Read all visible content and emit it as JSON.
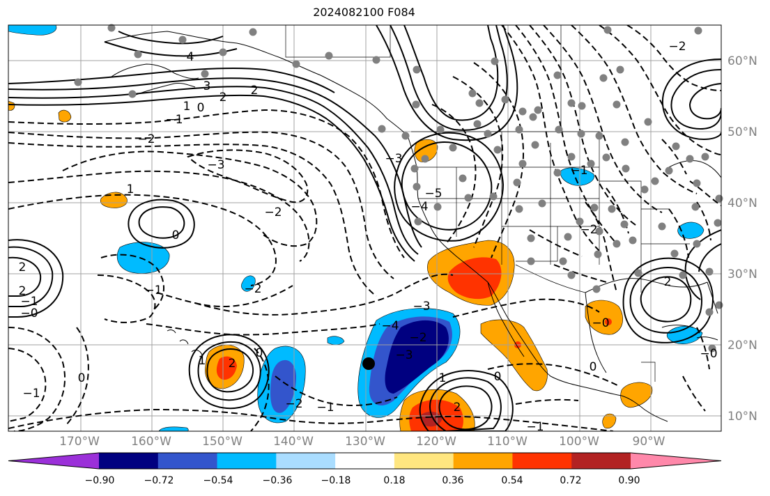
{
  "title": "2024082100 F084",
  "lon_labels": [
    "170°W",
    "160°W",
    "150°W",
    "140°W",
    "130°W",
    "120°W",
    "110°W",
    "100°W",
    "90°W"
  ],
  "lat_labels": [
    "60°N",
    "50°N",
    "40°N",
    "30°N",
    "20°N",
    "10°N"
  ],
  "colorbar": {
    "ticks": [
      "−0.90",
      "−0.72",
      "−0.54",
      "−0.36",
      "−0.18",
      "0.18",
      "0.36",
      "0.54",
      "0.72",
      "0.90"
    ],
    "colors": [
      "#9b30d9",
      "#000080",
      "#3355cc",
      "#00bbff",
      "#aaddff",
      "#ffffff",
      "#ffe680",
      "#ffa500",
      "#ff3300",
      "#b22222",
      "#ff88aa"
    ]
  },
  "contour_labels": [
    "4",
    "3",
    "2",
    "1",
    "0",
    "−1",
    "−2",
    "−3",
    "2",
    "1",
    "0",
    "−1",
    "−2",
    "−3",
    "−4",
    "−5",
    "−2",
    "2",
    "−0",
    "−1",
    "2",
    "2",
    "0",
    "1",
    "0",
    "−1",
    "−2",
    "−3",
    "−4",
    "1",
    "2",
    "−1",
    "−2",
    "−3",
    "−1",
    "0",
    "−0",
    "0",
    "−0",
    "−1",
    "2",
    "−2",
    "−2"
  ],
  "colors": {
    "land": "#000000",
    "grid": "#a0a0a0",
    "station": "#808080",
    "marker": "#000000"
  }
}
